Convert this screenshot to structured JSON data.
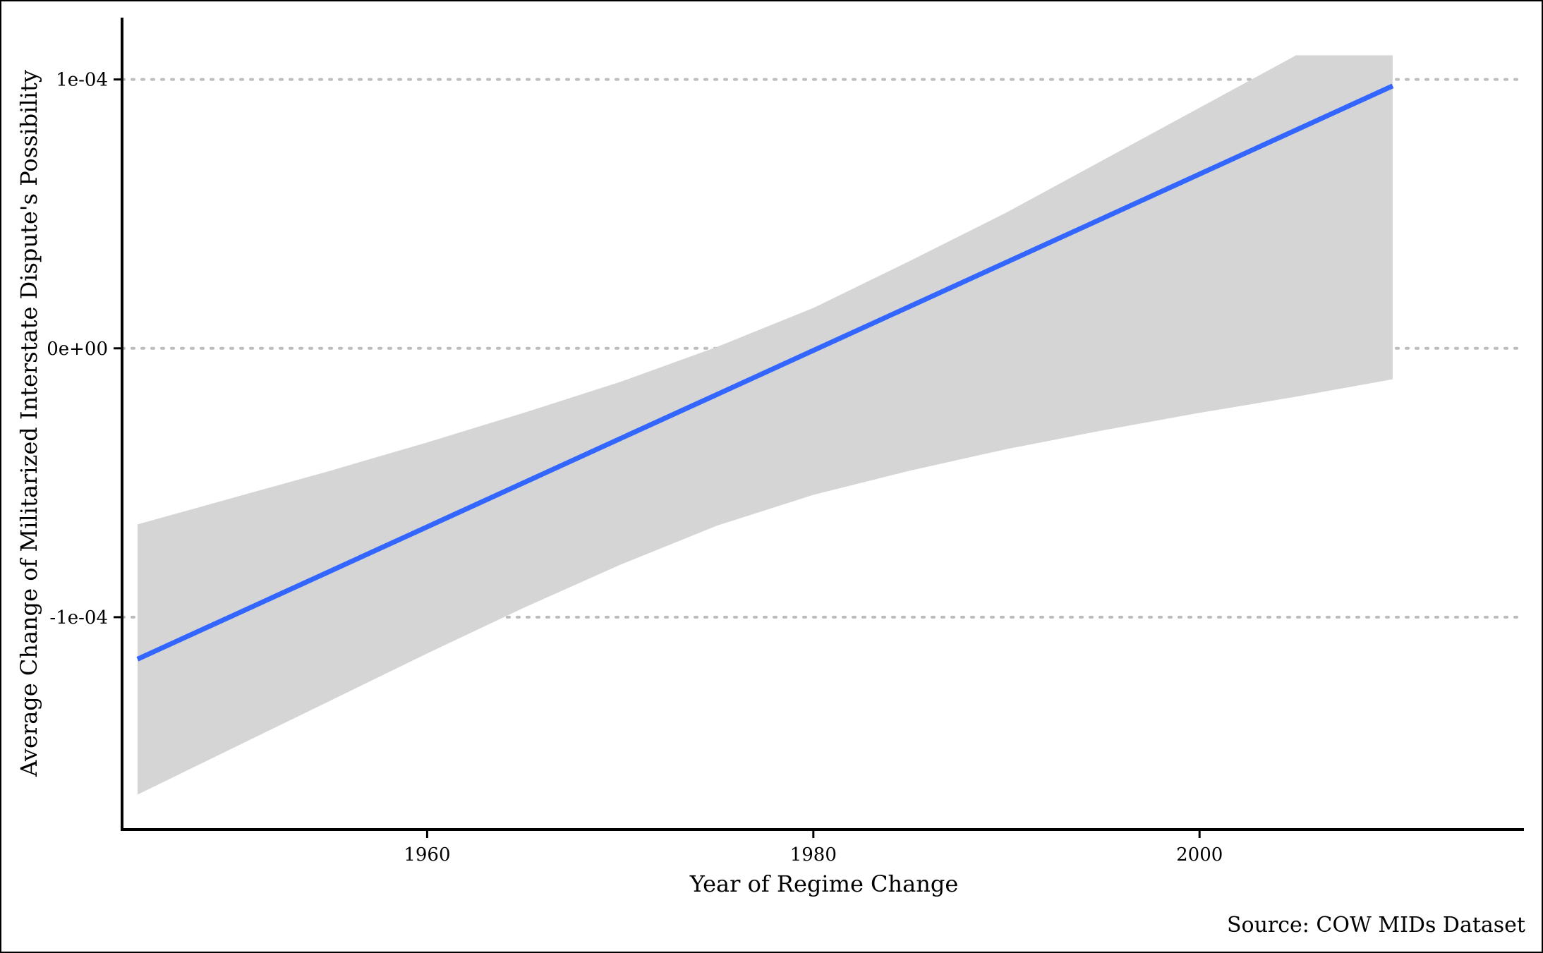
{
  "chart_data": {
    "type": "line",
    "title": "",
    "xlabel": "Year of Regime Change",
    "ylabel": "Average Change of Militarized Interstate Dispute's Possibility",
    "caption": "Source: COW MIDs Dataset",
    "xlim": [
      1944.2,
      2016.8
    ],
    "ylim": [
      -0.000179,
      0.000123
    ],
    "x_ticks": [
      1960,
      1980,
      2000
    ],
    "x_tick_labels": [
      "1960",
      "1980",
      "2000"
    ],
    "y_ticks": [
      -0.0001,
      0,
      0.0001
    ],
    "y_tick_labels": [
      "-1e-04",
      "0e+00",
      "1e-04"
    ],
    "grid": "horizontal dotted at y ticks",
    "legend": "none",
    "colors": {
      "line": "#3366FF",
      "ribbon": "#D5D5D5",
      "grid": "#BDBDBD",
      "axis": "#000000"
    },
    "series": [
      {
        "x": [
          1945,
          1950,
          1955,
          1960,
          1965,
          1970,
          1975,
          1980,
          1985,
          1990,
          1995,
          2000,
          2005,
          2010
        ],
        "values": [
          -0.0001156,
          -9.92e-05,
          -8.28e-05,
          -6.64e-05,
          -5e-05,
          -3.36e-05,
          -1.72e-05,
          -8e-07,
          1.56e-05,
          3.2e-05,
          4.84e-05,
          6.48e-05,
          8.12e-05,
          9.76e-05
        ],
        "lower": [
          -0.000166,
          -0.0001485,
          -0.000131,
          -0.0001135,
          -9.65e-05,
          -8.05e-05,
          -6.6e-05,
          -5.45e-05,
          -4.55e-05,
          -3.75e-05,
          -3.05e-05,
          -2.4e-05,
          -1.8e-05,
          -1.15e-05
        ],
        "upper": [
          -6.55e-05,
          -5.55e-05,
          -4.55e-05,
          -3.5e-05,
          -2.4e-05,
          -1.25e-05,
          5e-07,
          1.5e-05,
          3.25e-05,
          5.05e-05,
          7e-05,
          8.95e-05,
          0.000109,
          0.000109
        ]
      }
    ]
  }
}
